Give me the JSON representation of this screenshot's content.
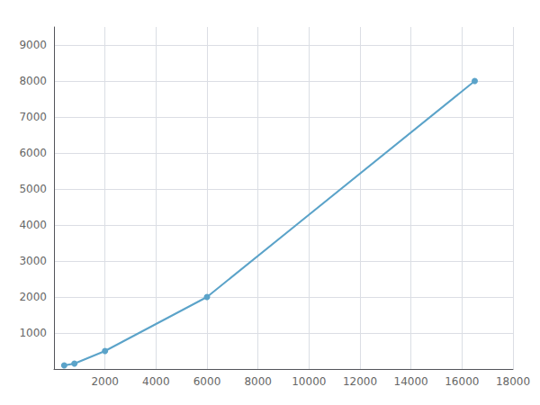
{
  "chart_data": {
    "type": "line",
    "x": [
      400,
      800,
      2000,
      6000,
      16500
    ],
    "series": [
      {
        "values": [
          100,
          150,
          500,
          2000,
          8000
        ],
        "color": "#5ba3c9",
        "marker": "circle"
      }
    ],
    "xlim": [
      0,
      18000
    ],
    "ylim": [
      0,
      9500
    ],
    "xticks": [
      {
        "value": 0,
        "label": null
      },
      2000,
      4000,
      6000,
      8000,
      10000,
      12000,
      14000,
      16000,
      18000
    ],
    "yticks": [
      {
        "value": 0,
        "label": null
      },
      1000,
      2000,
      3000,
      4000,
      5000,
      6000,
      7000,
      8000,
      9000
    ],
    "grid": true
  }
}
